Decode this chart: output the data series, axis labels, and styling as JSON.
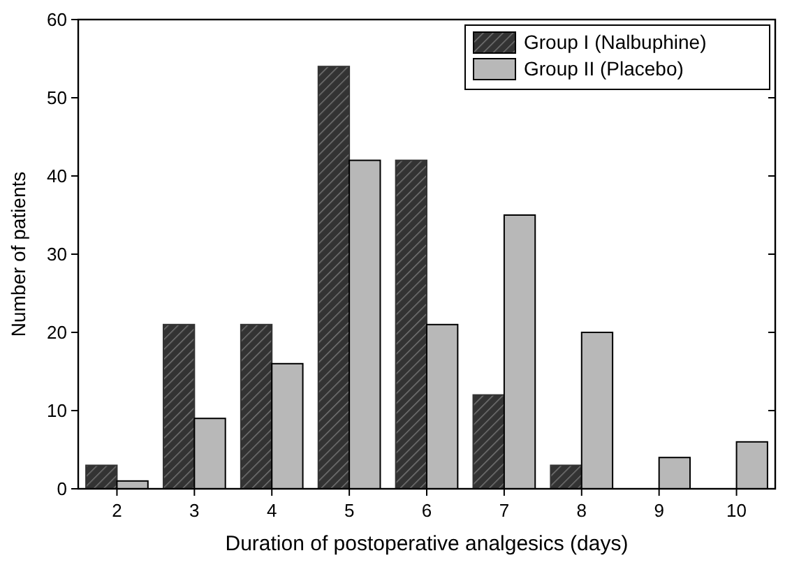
{
  "chart_data": {
    "type": "bar",
    "xlabel": "Duration of postoperative analgesics (days)",
    "ylabel": "Number of patients",
    "categories": [
      "2",
      "3",
      "4",
      "5",
      "6",
      "7",
      "8",
      "9",
      "10"
    ],
    "series": [
      {
        "name": "Group I (Nalbuphine)",
        "color": "#333333",
        "values": [
          3,
          21,
          21,
          54,
          42,
          12,
          3,
          0,
          0
        ]
      },
      {
        "name": "Group II (Placebo)",
        "color": "#b8b8b8",
        "values": [
          1,
          9,
          16,
          42,
          21,
          35,
          20,
          4,
          6
        ]
      }
    ],
    "ylim": [
      0,
      60
    ],
    "yticks": [
      0,
      10,
      20,
      30,
      40,
      50,
      60
    ],
    "legend": "top right",
    "grid": false
  }
}
